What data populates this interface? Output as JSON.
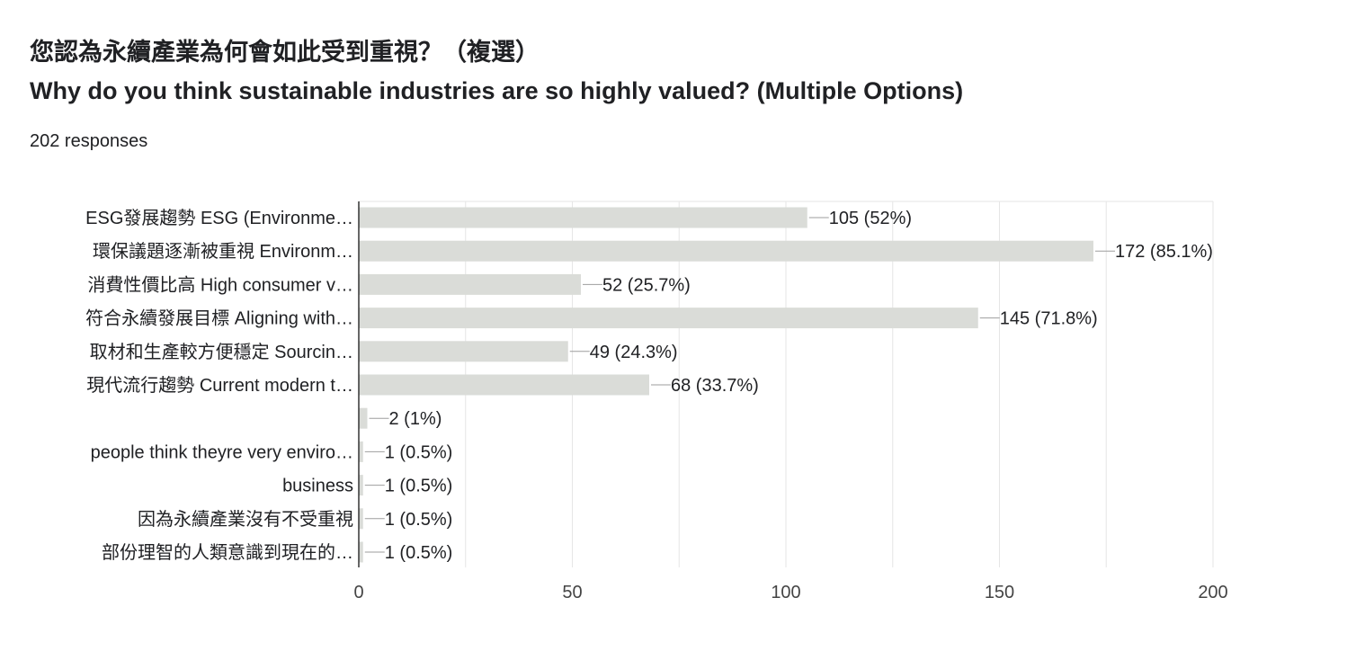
{
  "header": {
    "title_zh": "您認為永續產業為何會如此受到重視？（複選）",
    "title_en": "Why do you think sustainable industries are so highly valued? (Multiple Options)",
    "responses": "202 responses"
  },
  "chart_data": {
    "type": "bar",
    "orientation": "horizontal",
    "categories": [
      "ESG發展趨勢 ESG (Environme…",
      "環保議題逐漸被重視 Environm…",
      "消費性價比高 High consumer v…",
      "符合永續發展目標 Aligning with…",
      "取材和生產較方便穩定 Sourcin…",
      "現代流行趨勢 Current modern t…",
      "",
      "people think theyre very enviro…",
      "business",
      "因為永續產業沒有不受重視",
      "部份理智的人類意識到現在的…"
    ],
    "values": [
      105,
      172,
      52,
      145,
      49,
      68,
      2,
      1,
      1,
      1,
      1
    ],
    "value_labels": [
      "105 (52%)",
      "172 (85.1%)",
      "52 (25.7%)",
      "145 (71.8%)",
      "49 (24.3%)",
      "68 (33.7%)",
      "2 (1%)",
      "1 (0.5%)",
      "1 (0.5%)",
      "1 (0.5%)",
      "1 (0.5%)"
    ],
    "xlim": [
      0,
      200
    ],
    "xticks": [
      0,
      50,
      100,
      150,
      200
    ],
    "grid": true,
    "bar_color": "#dadcd8",
    "grid_color": "#e6e6e6",
    "axis_color": "#333333"
  }
}
